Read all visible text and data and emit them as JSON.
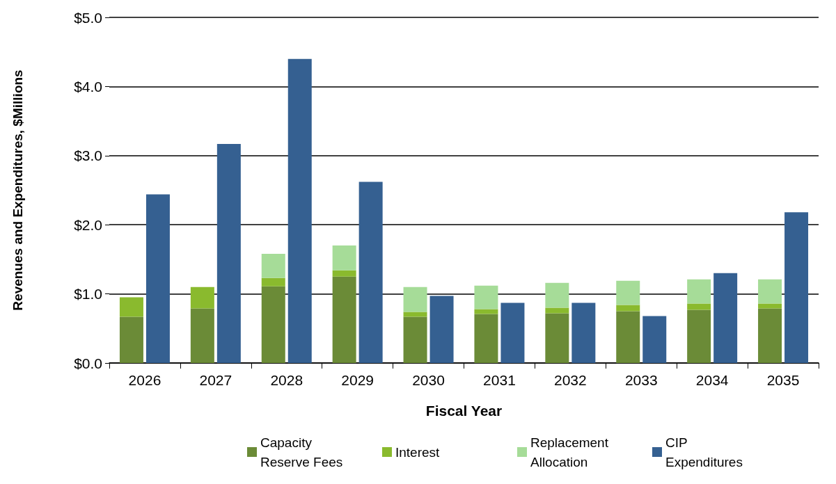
{
  "chart_data": {
    "type": "bar",
    "xlabel": "Fiscal Year",
    "ylabel": "Revenues and Expenditures, $Millions",
    "categories": [
      "2026",
      "2027",
      "2028",
      "2029",
      "2030",
      "2031",
      "2032",
      "2033",
      "2034",
      "2035"
    ],
    "series": [
      {
        "name": "Capacity\nReserve Fees",
        "color": "#6b8b37",
        "base": [
          0,
          0,
          0,
          0,
          0,
          0,
          0,
          0,
          0,
          0
        ],
        "values": [
          0.67,
          0.79,
          1.11,
          1.25,
          0.67,
          0.71,
          0.72,
          0.75,
          0.77,
          0.79
        ]
      },
      {
        "name": "Interest",
        "color": "#8aba2e",
        "base": [
          0.67,
          0.79,
          1.11,
          1.25,
          0.67,
          0.71,
          0.72,
          0.75,
          0.77,
          0.79
        ],
        "values": [
          0.28,
          0.31,
          0.12,
          0.09,
          0.07,
          0.07,
          0.08,
          0.09,
          0.09,
          0.07
        ]
      },
      {
        "name": "Replacement\nAllocation",
        "color": "#a6dc98",
        "base": [
          null,
          null,
          1.23,
          1.34,
          0.74,
          0.78,
          0.8,
          0.84,
          0.86,
          0.86
        ],
        "values": [
          null,
          null,
          0.35,
          0.36,
          0.36,
          0.34,
          0.36,
          0.35,
          0.35,
          0.35
        ]
      },
      {
        "name": "CIP\nExpenditures",
        "color": "#356091",
        "values": [
          2.44,
          3.17,
          4.4,
          2.62,
          0.97,
          0.87,
          0.87,
          0.68,
          1.3,
          2.18
        ]
      }
    ],
    "ylim": [
      0,
      5
    ],
    "yticks": [
      {
        "value": 0,
        "label": "$0.0"
      },
      {
        "value": 1,
        "label": "$1.0"
      },
      {
        "value": 2,
        "label": "$2.0"
      },
      {
        "value": 3,
        "label": "$3.0"
      },
      {
        "value": 4,
        "label": "$4.0"
      },
      {
        "value": 5,
        "label": "$5.0"
      }
    ],
    "grid": "y",
    "legend": "bottom"
  }
}
